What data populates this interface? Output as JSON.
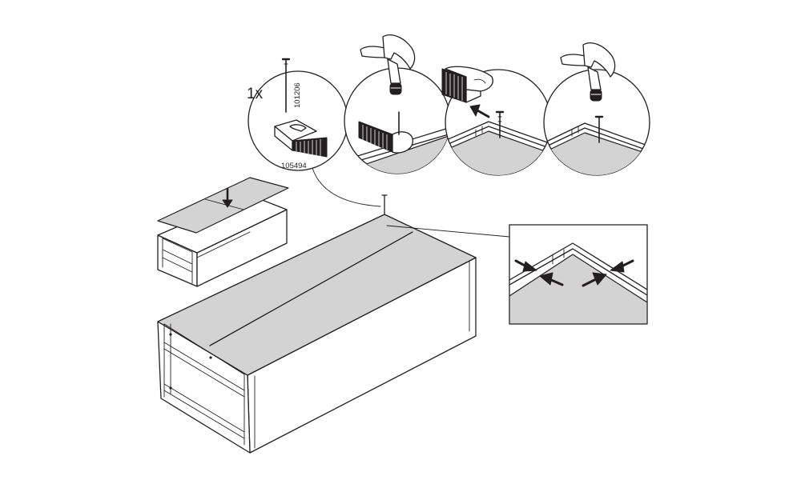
{
  "instruction_step": {
    "quantity_label": "1x",
    "nail_part_number": "101206",
    "tool_part_number": "105494"
  },
  "icons": {
    "hammer": "hammer-icon",
    "nail": "nail-icon",
    "nail_guide": "nail-guide-tool-icon",
    "arrow": "arrow-icon"
  },
  "colors": {
    "line": "#231f20",
    "panel_fill": "#d3d3d3",
    "background": "#ffffff"
  }
}
